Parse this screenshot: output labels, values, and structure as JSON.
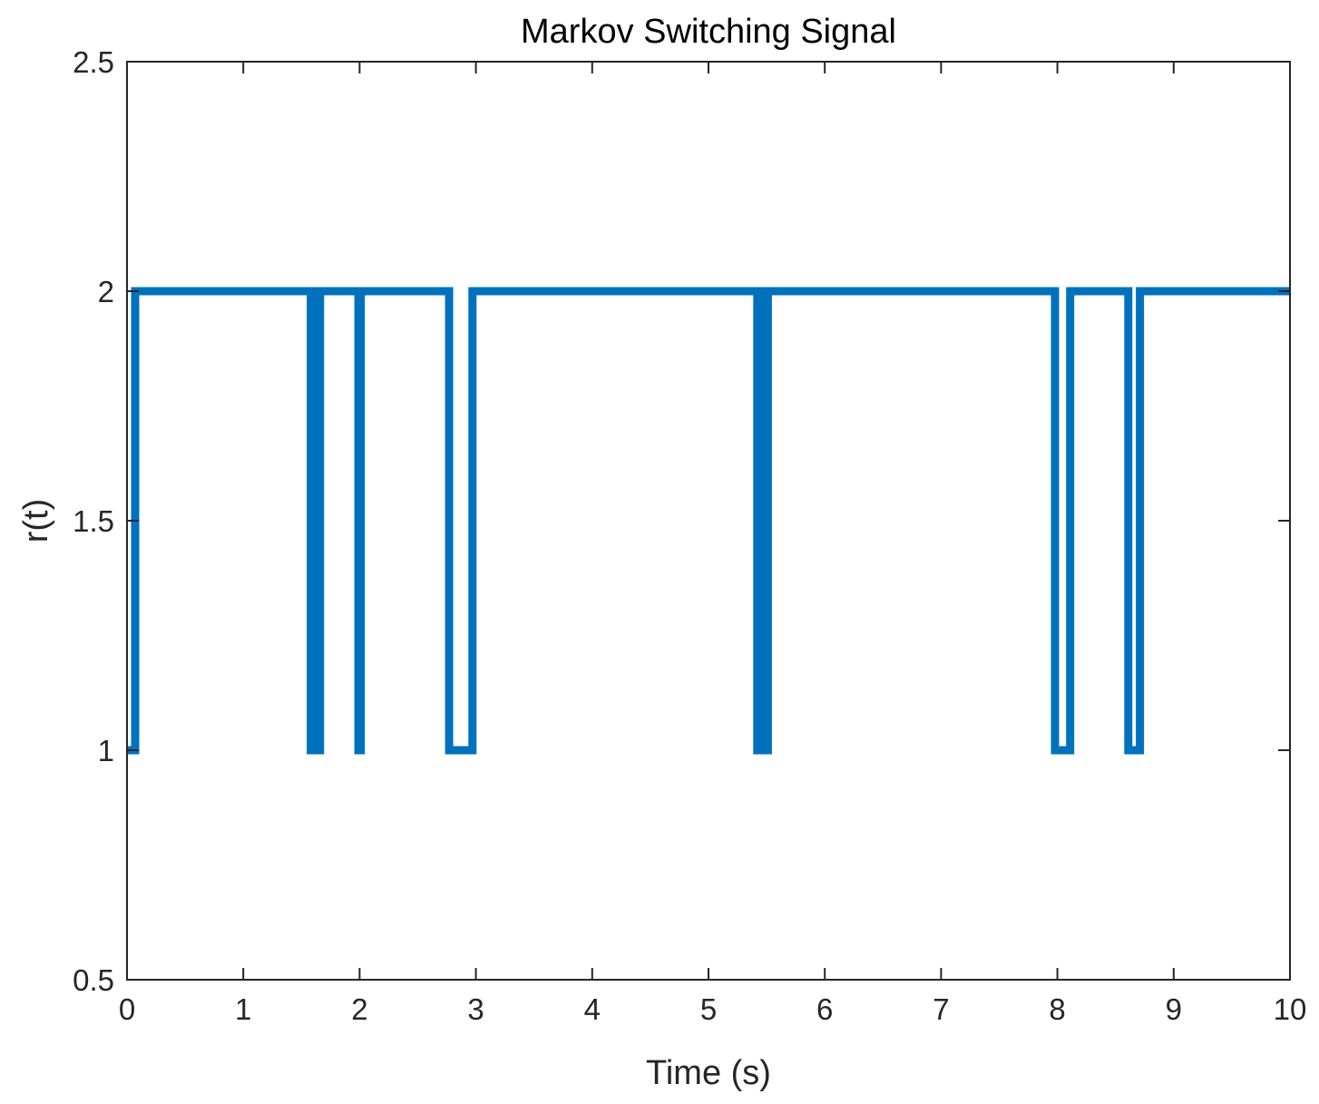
{
  "chart_data": {
    "type": "line",
    "title": "Markov Switching Signal",
    "xlabel": "Time (s)",
    "ylabel": "r(t)",
    "xlim": [
      0,
      10
    ],
    "ylim": [
      0.5,
      2.5
    ],
    "xticks": [
      0,
      1,
      2,
      3,
      4,
      5,
      6,
      7,
      8,
      9,
      10
    ],
    "yticks": [
      0.5,
      1,
      1.5,
      2,
      2.5
    ],
    "xtick_labels": [
      "0",
      "1",
      "2",
      "3",
      "4",
      "5",
      "6",
      "7",
      "8",
      "9",
      "10"
    ],
    "ytick_labels": [
      "0.5",
      "1",
      "1.5",
      "2",
      "2.5"
    ],
    "grid": false,
    "box": true,
    "series": [
      {
        "color": "#0072BD",
        "step": true,
        "points": [
          [
            0,
            1
          ],
          [
            0.07,
            1
          ],
          [
            0.07,
            2
          ],
          [
            1.58,
            2
          ],
          [
            1.58,
            1
          ],
          [
            1.61,
            1
          ],
          [
            1.61,
            2
          ],
          [
            1.63,
            2
          ],
          [
            1.63,
            1
          ],
          [
            1.66,
            1
          ],
          [
            1.66,
            2
          ],
          [
            1.99,
            2
          ],
          [
            1.99,
            1
          ],
          [
            2.01,
            1
          ],
          [
            2.01,
            2
          ],
          [
            2.77,
            2
          ],
          [
            2.77,
            1
          ],
          [
            2.97,
            1
          ],
          [
            2.97,
            2
          ],
          [
            5.42,
            2
          ],
          [
            5.42,
            1
          ],
          [
            5.45,
            1
          ],
          [
            5.45,
            2
          ],
          [
            5.48,
            2
          ],
          [
            5.48,
            1
          ],
          [
            5.51,
            1
          ],
          [
            5.51,
            2
          ],
          [
            7.98,
            2
          ],
          [
            7.98,
            1
          ],
          [
            8.11,
            1
          ],
          [
            8.11,
            2
          ],
          [
            8.61,
            2
          ],
          [
            8.61,
            1
          ],
          [
            8.71,
            1
          ],
          [
            8.71,
            2
          ],
          [
            10,
            2
          ]
        ]
      }
    ]
  }
}
